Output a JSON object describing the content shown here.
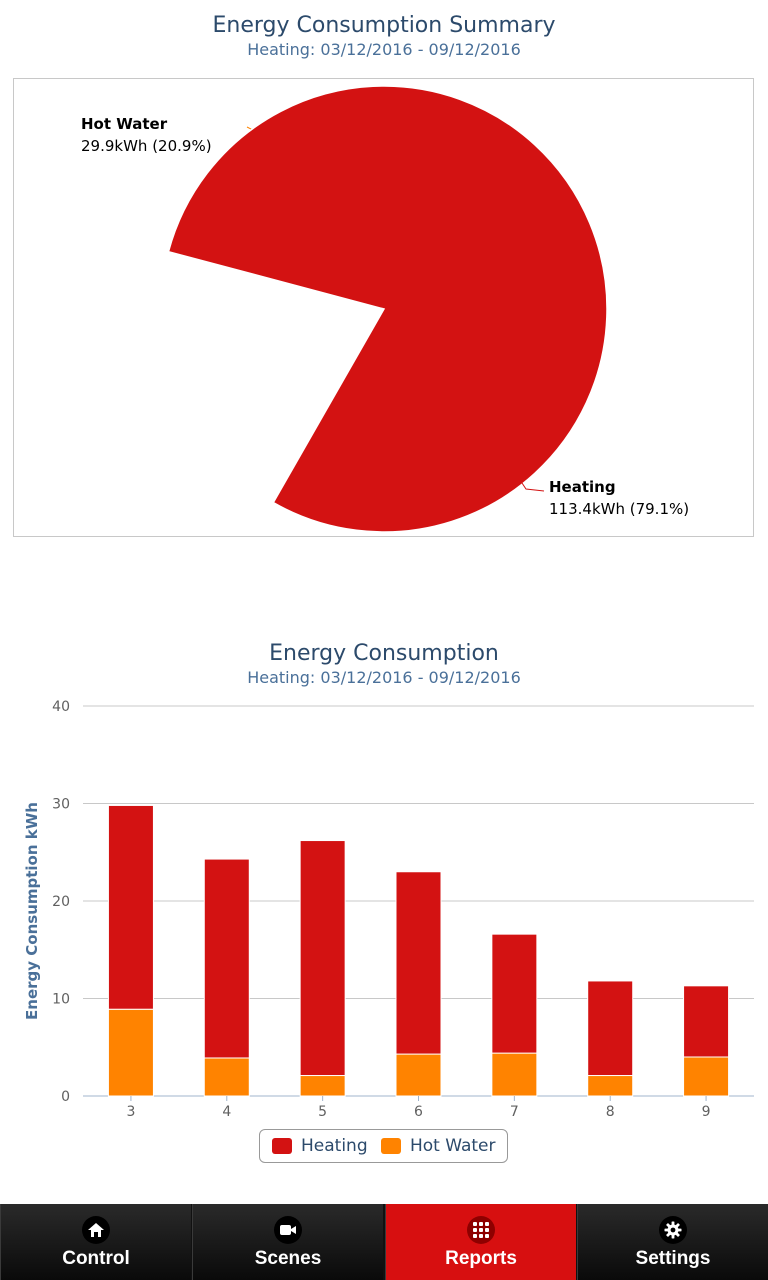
{
  "summary": {
    "title": "Energy Consumption Summary",
    "subtitle": "Heating: 03/12/2016 - 09/12/2016"
  },
  "detail": {
    "title": "Energy Consumption",
    "subtitle": "Heating: 03/12/2016 - 09/12/2016"
  },
  "chart_data": [
    {
      "type": "pie",
      "title": "Energy Consumption Summary",
      "subtitle": "Heating: 03/12/2016 - 09/12/2016",
      "slices": [
        {
          "name": "Hot Water",
          "value": 29.9,
          "percent": 20.9,
          "label": "29.9kWh (20.9%)",
          "color": "#ff8300"
        },
        {
          "name": "Heating",
          "value": 113.4,
          "percent": 79.1,
          "label": "113.4kWh (79.1%)",
          "color": "#d31212"
        }
      ]
    },
    {
      "type": "bar",
      "stacked": true,
      "title": "Energy Consumption",
      "subtitle": "Heating: 03/12/2016 - 09/12/2016",
      "ylabel": "Energy Consumption kWh",
      "ylim": [
        0,
        40
      ],
      "yticks": [
        0,
        10,
        20,
        30,
        40
      ],
      "categories": [
        "3",
        "4",
        "5",
        "6",
        "7",
        "8",
        "9"
      ],
      "series": [
        {
          "name": "Hot Water",
          "color": "#ff8300",
          "values": [
            8.9,
            3.9,
            2.1,
            4.3,
            4.4,
            2.1,
            4.0
          ]
        },
        {
          "name": "Heating",
          "color": "#d31212",
          "values": [
            20.9,
            20.4,
            24.1,
            18.7,
            12.2,
            9.7,
            7.3
          ]
        }
      ],
      "legend": "bottom-center"
    }
  ],
  "legend": {
    "heating": "Heating",
    "hot_water": "Hot Water"
  },
  "tabs": [
    {
      "label": "Control",
      "icon": "home-icon",
      "active": false
    },
    {
      "label": "Scenes",
      "icon": "video-camera-icon",
      "active": false
    },
    {
      "label": "Reports",
      "icon": "grid-icon",
      "active": true
    },
    {
      "label": "Settings",
      "icon": "gear-icon",
      "active": false
    }
  ]
}
